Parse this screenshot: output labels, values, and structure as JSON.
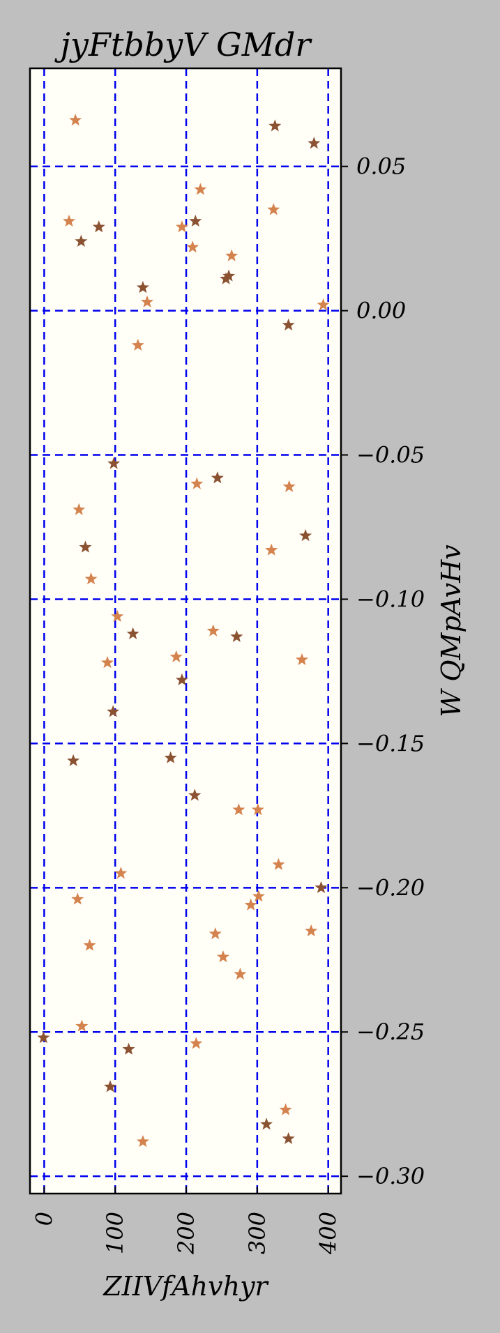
{
  "chart_data": {
    "type": "scatter",
    "title": "jyFtbbyV GMdr",
    "xlabel": "ZIIVfAhvhyr",
    "ylabel": "W QMpAvHv",
    "xlim": [
      -20,
      418
    ],
    "ylim": [
      -0.306,
      0.084
    ],
    "x_ticks": [
      0,
      100,
      200,
      300,
      400
    ],
    "x_tick_labels": [
      "0",
      "100",
      "200",
      "300",
      "400"
    ],
    "y_ticks": [
      0.05,
      0.0,
      -0.05,
      -0.1,
      -0.15,
      -0.2,
      -0.25,
      -0.3
    ],
    "y_tick_labels": [
      "0.05",
      "0.00",
      "−0.05",
      "−0.10",
      "−0.15",
      "−0.20",
      "−0.25",
      "−0.30"
    ],
    "y_axis_side": "right",
    "x_tick_rotation": "vertical",
    "grid": true,
    "grid_style": "dashed",
    "marker": "star",
    "colors": {
      "background": "#bfbfbf",
      "plot_background": "#fffff8",
      "grid": "#0000ee",
      "series_1": "#8b5232",
      "series_2": "#d4834e"
    },
    "series": [
      {
        "color": "#8b5232",
        "points": [
          [
            325,
            0.064
          ],
          [
            380,
            0.058
          ],
          [
            213,
            0.031
          ],
          [
            77,
            0.029
          ],
          [
            52,
            0.024
          ],
          [
            260,
            0.012
          ],
          [
            256,
            0.011
          ],
          [
            139,
            0.008
          ],
          [
            344,
            -0.005
          ],
          [
            98,
            -0.053
          ],
          [
            244,
            -0.058
          ],
          [
            58,
            -0.082
          ],
          [
            368,
            -0.078
          ],
          [
            125,
            -0.112
          ],
          [
            271,
            -0.113
          ],
          [
            194,
            -0.128
          ],
          [
            97,
            -0.139
          ],
          [
            41,
            -0.156
          ],
          [
            178,
            -0.155
          ],
          [
            212,
            -0.168
          ],
          [
            390,
            -0.2
          ],
          [
            -1,
            -0.252
          ],
          [
            119,
            -0.256
          ],
          [
            93,
            -0.269
          ],
          [
            313,
            -0.282
          ],
          [
            344,
            -0.287
          ]
        ]
      },
      {
        "color": "#d4834e",
        "points": [
          [
            44,
            0.066
          ],
          [
            220,
            0.042
          ],
          [
            35,
            0.031
          ],
          [
            323,
            0.035
          ],
          [
            194,
            0.029
          ],
          [
            209,
            0.022
          ],
          [
            264,
            0.019
          ],
          [
            145,
            0.003
          ],
          [
            393,
            0.002
          ],
          [
            132,
            -0.012
          ],
          [
            215,
            -0.06
          ],
          [
            345,
            -0.061
          ],
          [
            49,
            -0.069
          ],
          [
            320,
            -0.083
          ],
          [
            66,
            -0.093
          ],
          [
            103,
            -0.106
          ],
          [
            238,
            -0.111
          ],
          [
            186,
            -0.12
          ],
          [
            89,
            -0.122
          ],
          [
            363,
            -0.121
          ],
          [
            274,
            -0.173
          ],
          [
            301,
            -0.173
          ],
          [
            330,
            -0.192
          ],
          [
            108,
            -0.195
          ],
          [
            47,
            -0.204
          ],
          [
            302,
            -0.203
          ],
          [
            291,
            -0.206
          ],
          [
            241,
            -0.216
          ],
          [
            376,
            -0.215
          ],
          [
            252,
            -0.224
          ],
          [
            64,
            -0.22
          ],
          [
            276,
            -0.23
          ],
          [
            53,
            -0.248
          ],
          [
            214,
            -0.254
          ],
          [
            340,
            -0.277
          ],
          [
            139,
            -0.288
          ]
        ]
      }
    ]
  }
}
